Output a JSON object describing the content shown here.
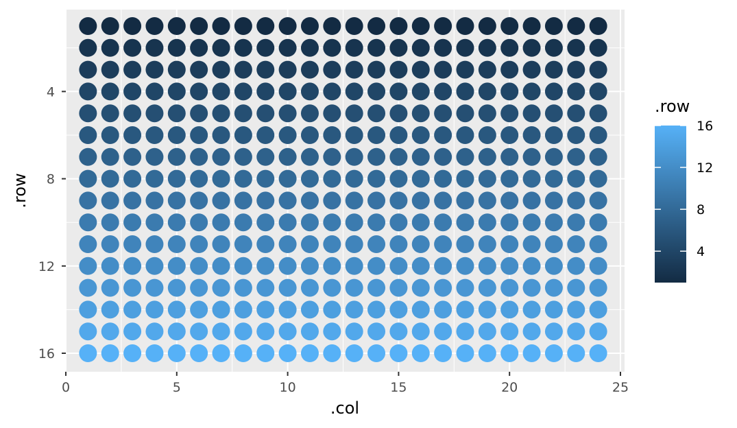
{
  "chart_data": {
    "type": "scatter",
    "title": "",
    "xlabel": ".col",
    "ylabel": ".row",
    "xlim": [
      0,
      25
    ],
    "ylim": [
      16,
      1
    ],
    "y_reversed": true,
    "x_ticks": [
      0,
      5,
      10,
      15,
      20,
      25
    ],
    "y_ticks": [
      4,
      8,
      12,
      16
    ],
    "columns": [
      1,
      2,
      3,
      4,
      5,
      6,
      7,
      8,
      9,
      10,
      11,
      12,
      13,
      14,
      15,
      16,
      17,
      18,
      19,
      20,
      21,
      22,
      23,
      24
    ],
    "rows": [
      1,
      2,
      3,
      4,
      5,
      6,
      7,
      8,
      9,
      10,
      11,
      12,
      13,
      14,
      15,
      16
    ],
    "color_by": ".row",
    "grid": true,
    "legend": {
      "title": ".row",
      "type": "colorbar",
      "placement": "right",
      "range": [
        1,
        16
      ],
      "ticks": [
        4,
        8,
        12,
        16
      ],
      "low_color": "#132B43",
      "high_color": "#56B1F7"
    },
    "panel_color": "#EBEBEB",
    "grid_color": "#FFFFFF"
  }
}
